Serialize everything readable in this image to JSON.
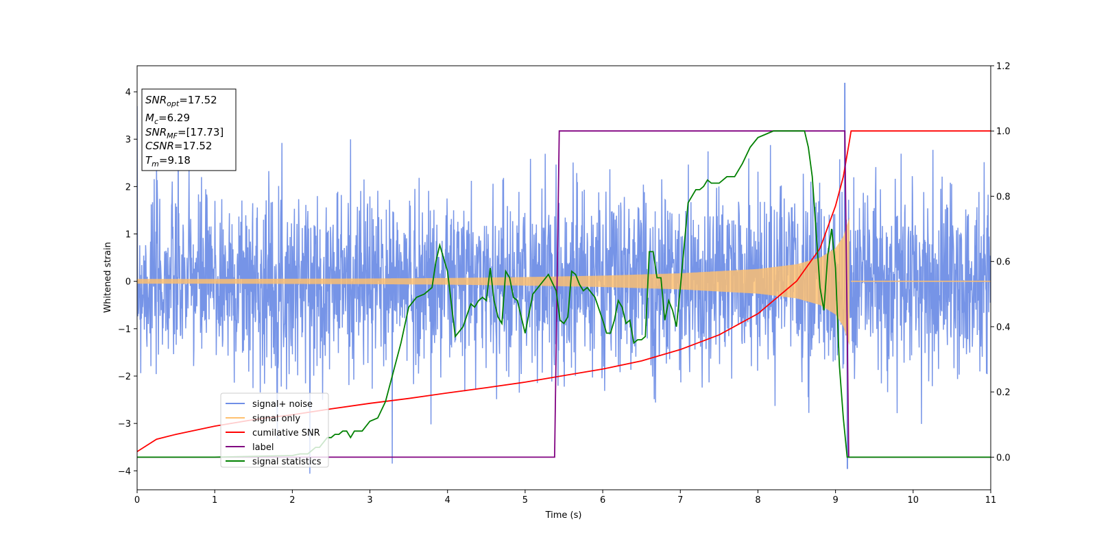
{
  "chart_data": {
    "type": "line",
    "xlabel": "Time (s)",
    "ylabel": "Whitened strain",
    "xlim": [
      0,
      11
    ],
    "ylim_left": [
      -4.4,
      4.55
    ],
    "ylim_right": [
      -0.1,
      1.2
    ],
    "x_ticks": [
      0,
      1,
      2,
      3,
      4,
      5,
      6,
      7,
      8,
      9,
      10,
      11
    ],
    "y_ticks_left": [
      -4,
      -3,
      -2,
      -1,
      0,
      1,
      2,
      3,
      4
    ],
    "y_ticks_right": [
      0.0,
      0.2,
      0.4,
      0.6,
      0.8,
      1.0,
      1.2
    ],
    "y_tick_labels_right": [
      "0.0",
      "0.2",
      "0.4",
      "0.6",
      "0.8",
      "1.0",
      "1.2"
    ],
    "grid": false,
    "legend_position": "lower-left",
    "series": [
      {
        "name": "signal+ noise",
        "axis": "left",
        "color": "#6f8ee6",
        "description_of_values": "whitened noise of std ~0.95 over 0-11 s with spikes up to 4.18 at t=9.12 and down to -3.95 at t=9.15"
      },
      {
        "name": "signal only",
        "axis": "left",
        "color": "#ffc06e",
        "envelope_x": [
          0,
          1,
          2,
          3,
          4,
          5,
          6,
          7,
          8,
          8.5,
          8.8,
          9.0,
          9.1,
          9.18,
          9.2,
          11
        ],
        "envelope_y": [
          0.05,
          0.05,
          0.055,
          0.06,
          0.07,
          0.09,
          0.12,
          0.17,
          0.26,
          0.36,
          0.5,
          0.7,
          0.95,
          1.35,
          0,
          0
        ]
      },
      {
        "name": "cumilative SNR",
        "axis": "right",
        "color": "#ff0000",
        "x": [
          0,
          0.25,
          0.5,
          1,
          1.5,
          2,
          2.5,
          3,
          3.5,
          4,
          4.5,
          5,
          5.5,
          6,
          6.5,
          7,
          7.5,
          8,
          8.5,
          8.8,
          9.0,
          9.1,
          9.18,
          9.2,
          11
        ],
        "values": [
          0.017,
          0.055,
          0.07,
          0.095,
          0.115,
          0.13,
          0.148,
          0.165,
          0.18,
          0.197,
          0.213,
          0.23,
          0.25,
          0.27,
          0.295,
          0.33,
          0.375,
          0.44,
          0.54,
          0.64,
          0.77,
          0.86,
          0.97,
          1.0,
          1.0
        ]
      },
      {
        "name": "label",
        "axis": "right",
        "color": "#800080",
        "x": [
          0,
          5.38,
          5.44,
          9.12,
          9.17,
          11
        ],
        "values": [
          0,
          0,
          1,
          1,
          0,
          0
        ]
      },
      {
        "name": "signal statistics",
        "axis": "right",
        "color": "#008000",
        "x": [
          0,
          1,
          2,
          2.1,
          2.2,
          2.3,
          2.35,
          2.45,
          2.5,
          2.55,
          2.6,
          2.65,
          2.7,
          2.75,
          2.8,
          2.9,
          3,
          3.1,
          3.2,
          3.3,
          3.4,
          3.5,
          3.6,
          3.7,
          3.8,
          3.85,
          3.9,
          4.0,
          4.1,
          4.2,
          4.3,
          4.35,
          4.4,
          4.45,
          4.5,
          4.55,
          4.6,
          4.65,
          4.7,
          4.75,
          4.8,
          4.85,
          4.9,
          5.0,
          5.1,
          5.2,
          5.3,
          5.4,
          5.45,
          5.5,
          5.55,
          5.6,
          5.65,
          5.7,
          5.75,
          5.8,
          5.9,
          6.0,
          6.05,
          6.1,
          6.15,
          6.2,
          6.25,
          6.3,
          6.35,
          6.4,
          6.45,
          6.5,
          6.55,
          6.6,
          6.65,
          6.7,
          6.75,
          6.8,
          6.85,
          6.9,
          6.95,
          7.0,
          7.1,
          7.2,
          7.25,
          7.3,
          7.35,
          7.4,
          7.5,
          7.6,
          7.7,
          7.8,
          7.9,
          8.0,
          8.1,
          8.2,
          8.3,
          8.4,
          8.5,
          8.6,
          8.65,
          8.7,
          8.8,
          8.85,
          8.9,
          8.95,
          9.0,
          9.05,
          9.1,
          9.15,
          9.2,
          9.25,
          9.3,
          10,
          11
        ],
        "values": [
          0.0,
          0.0,
          0.005,
          0.01,
          0.01,
          0.03,
          0.03,
          0.06,
          0.06,
          0.07,
          0.07,
          0.08,
          0.08,
          0.06,
          0.08,
          0.08,
          0.11,
          0.12,
          0.17,
          0.26,
          0.35,
          0.46,
          0.49,
          0.5,
          0.52,
          0.6,
          0.65,
          0.57,
          0.37,
          0.4,
          0.47,
          0.46,
          0.48,
          0.49,
          0.48,
          0.58,
          0.48,
          0.43,
          0.41,
          0.57,
          0.55,
          0.49,
          0.48,
          0.38,
          0.5,
          0.53,
          0.56,
          0.51,
          0.42,
          0.41,
          0.43,
          0.57,
          0.56,
          0.53,
          0.51,
          0.52,
          0.49,
          0.42,
          0.38,
          0.38,
          0.42,
          0.48,
          0.46,
          0.41,
          0.42,
          0.35,
          0.36,
          0.36,
          0.37,
          0.63,
          0.63,
          0.55,
          0.55,
          0.42,
          0.48,
          0.45,
          0.4,
          0.52,
          0.78,
          0.82,
          0.82,
          0.83,
          0.85,
          0.84,
          0.84,
          0.86,
          0.86,
          0.9,
          0.95,
          0.98,
          0.99,
          1.0,
          1.0,
          1.0,
          1.0,
          1.0,
          0.95,
          0.86,
          0.52,
          0.45,
          0.62,
          0.7,
          0.58,
          0.28,
          0.12,
          0.0,
          0.0,
          0.0,
          0.0,
          0.0,
          0.0
        ]
      }
    ],
    "annotations": [
      {
        "base": "SNR",
        "sub": "opt",
        "text": "=17.52"
      },
      {
        "base": "M",
        "sub": "c",
        "text": "=6.29"
      },
      {
        "base": "SNR",
        "sub": "MF",
        "text": "=[17.73]"
      },
      {
        "base": "CSNR",
        "sub": "",
        "text": "=17.52"
      },
      {
        "base": "T",
        "sub": "m",
        "text": "=9.18"
      }
    ]
  }
}
